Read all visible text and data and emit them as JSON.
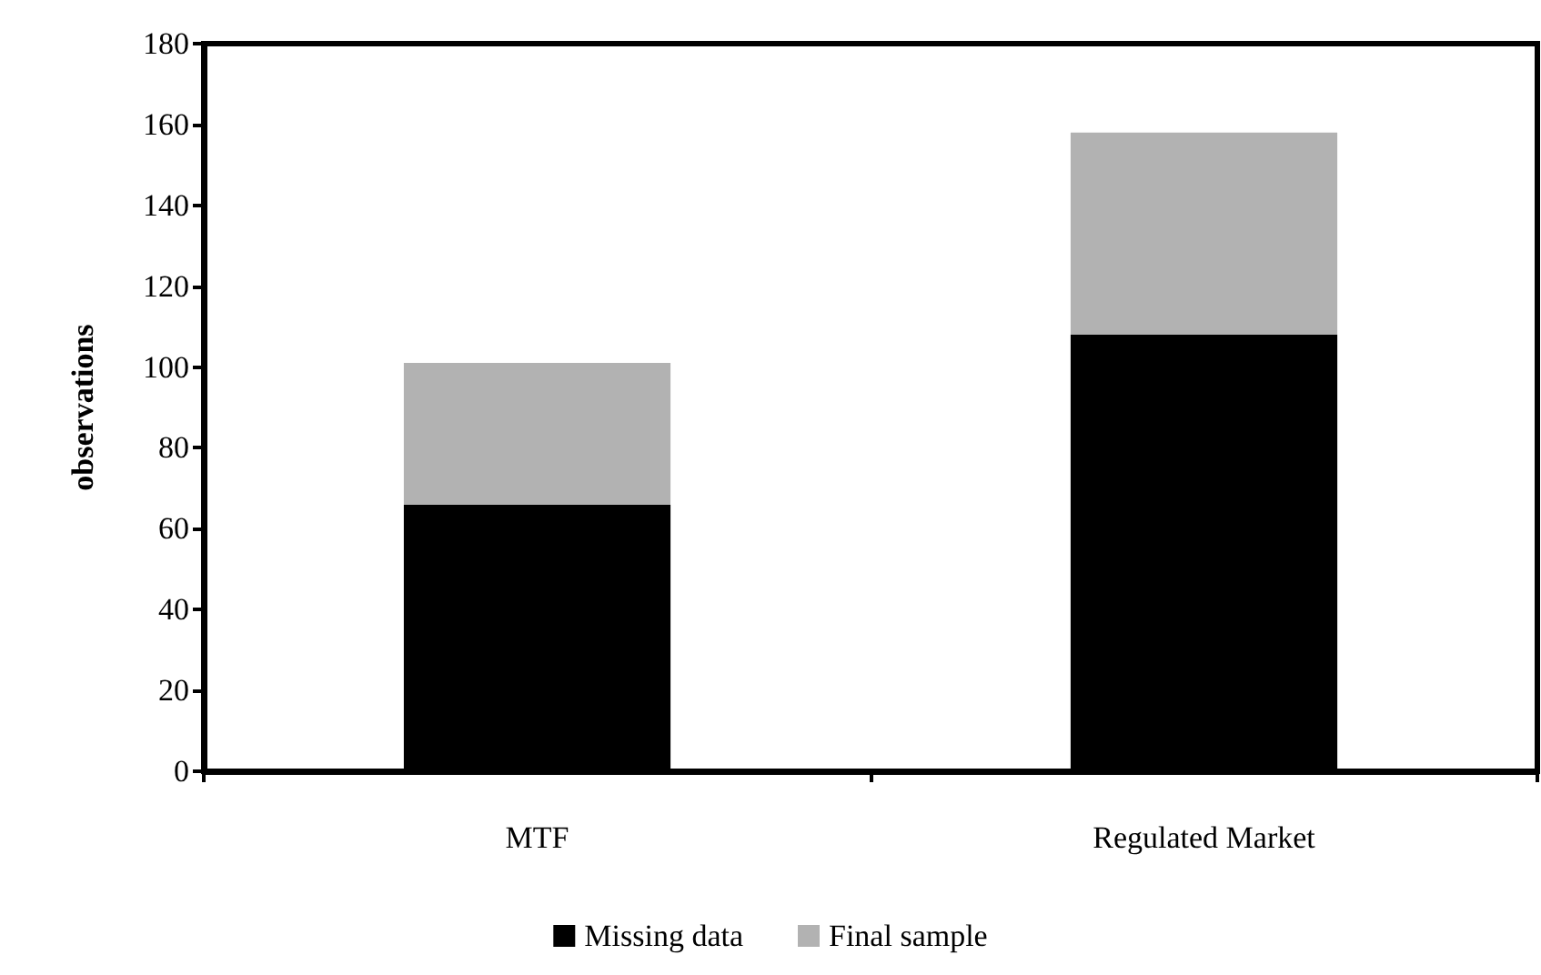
{
  "chart_data": {
    "type": "bar",
    "stacked": true,
    "ylabel": "observations",
    "categories": [
      "MTF",
      "Regulated Market"
    ],
    "series": [
      {
        "name": "Missing data",
        "color": "#000000",
        "values": [
          66,
          108
        ]
      },
      {
        "name": "Final sample",
        "color": "#b2b2b2",
        "values": [
          35,
          50
        ]
      }
    ],
    "ylim": [
      0,
      180
    ],
    "yticks": [
      0,
      20,
      40,
      60,
      80,
      100,
      120,
      140,
      160,
      180
    ],
    "grid": false,
    "legend": "bottom"
  }
}
